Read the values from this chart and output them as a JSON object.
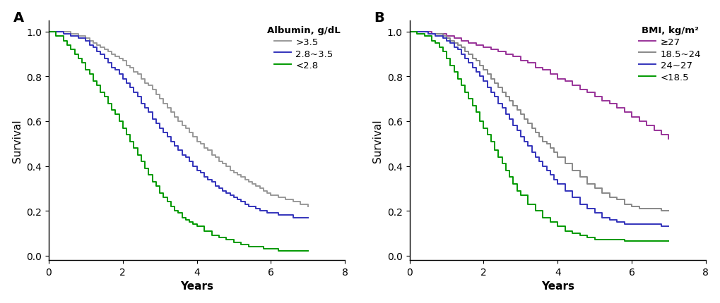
{
  "panel_A": {
    "label": "A",
    "title": "Albumin, g/dL",
    "xlabel": "Years",
    "ylabel": "Survival",
    "xlim": [
      0,
      8
    ],
    "ylim": [
      -0.02,
      1.05
    ],
    "xticks": [
      0,
      2,
      4,
      6,
      8
    ],
    "yticks": [
      0.0,
      0.2,
      0.4,
      0.6,
      0.8,
      1.0
    ],
    "curves": [
      {
        "label": ">3.5",
        "color": "#999999",
        "times": [
          0,
          0.4,
          0.6,
          0.8,
          1.0,
          1.1,
          1.2,
          1.3,
          1.4,
          1.5,
          1.6,
          1.7,
          1.8,
          1.9,
          2.0,
          2.1,
          2.2,
          2.3,
          2.4,
          2.5,
          2.6,
          2.7,
          2.8,
          2.9,
          3.0,
          3.1,
          3.2,
          3.3,
          3.4,
          3.5,
          3.6,
          3.7,
          3.8,
          3.9,
          4.0,
          4.1,
          4.2,
          4.3,
          4.4,
          4.5,
          4.6,
          4.7,
          4.8,
          4.9,
          5.0,
          5.1,
          5.2,
          5.3,
          5.4,
          5.5,
          5.6,
          5.7,
          5.8,
          5.9,
          6.0,
          6.2,
          6.4,
          6.6,
          6.8,
          7.0
        ],
        "survival": [
          1.0,
          1.0,
          0.99,
          0.98,
          0.97,
          0.96,
          0.95,
          0.94,
          0.93,
          0.92,
          0.91,
          0.9,
          0.89,
          0.88,
          0.87,
          0.85,
          0.84,
          0.82,
          0.81,
          0.79,
          0.77,
          0.76,
          0.74,
          0.72,
          0.7,
          0.68,
          0.66,
          0.64,
          0.62,
          0.6,
          0.58,
          0.57,
          0.55,
          0.53,
          0.51,
          0.5,
          0.48,
          0.47,
          0.45,
          0.44,
          0.42,
          0.41,
          0.4,
          0.38,
          0.37,
          0.36,
          0.35,
          0.34,
          0.33,
          0.32,
          0.31,
          0.3,
          0.29,
          0.28,
          0.27,
          0.26,
          0.25,
          0.24,
          0.23,
          0.22
        ]
      },
      {
        "label": "2.8~3.5",
        "color": "#3333bb",
        "times": [
          0,
          0.4,
          0.6,
          0.8,
          1.0,
          1.1,
          1.2,
          1.3,
          1.4,
          1.5,
          1.6,
          1.7,
          1.8,
          1.9,
          2.0,
          2.1,
          2.2,
          2.3,
          2.4,
          2.5,
          2.6,
          2.7,
          2.8,
          2.9,
          3.0,
          3.1,
          3.2,
          3.3,
          3.4,
          3.5,
          3.6,
          3.7,
          3.8,
          3.9,
          4.0,
          4.1,
          4.2,
          4.3,
          4.4,
          4.5,
          4.6,
          4.7,
          4.8,
          4.9,
          5.0,
          5.1,
          5.2,
          5.3,
          5.4,
          5.5,
          5.6,
          5.7,
          5.8,
          5.9,
          6.0,
          6.2,
          6.4,
          6.6,
          6.8,
          7.0
        ],
        "survival": [
          1.0,
          0.99,
          0.98,
          0.97,
          0.96,
          0.94,
          0.93,
          0.91,
          0.9,
          0.88,
          0.86,
          0.84,
          0.83,
          0.81,
          0.79,
          0.77,
          0.75,
          0.73,
          0.71,
          0.68,
          0.66,
          0.64,
          0.61,
          0.59,
          0.57,
          0.55,
          0.53,
          0.51,
          0.49,
          0.47,
          0.45,
          0.44,
          0.42,
          0.4,
          0.38,
          0.37,
          0.35,
          0.34,
          0.33,
          0.31,
          0.3,
          0.29,
          0.28,
          0.27,
          0.26,
          0.25,
          0.24,
          0.23,
          0.22,
          0.22,
          0.21,
          0.2,
          0.2,
          0.19,
          0.19,
          0.18,
          0.18,
          0.17,
          0.17,
          0.17
        ]
      },
      {
        "label": "<2.8",
        "color": "#009900",
        "times": [
          0,
          0.2,
          0.4,
          0.5,
          0.6,
          0.7,
          0.8,
          0.9,
          1.0,
          1.1,
          1.2,
          1.3,
          1.4,
          1.5,
          1.6,
          1.7,
          1.8,
          1.9,
          2.0,
          2.1,
          2.2,
          2.3,
          2.4,
          2.5,
          2.6,
          2.7,
          2.8,
          2.9,
          3.0,
          3.1,
          3.2,
          3.3,
          3.4,
          3.5,
          3.6,
          3.7,
          3.8,
          3.9,
          4.0,
          4.2,
          4.4,
          4.6,
          4.8,
          5.0,
          5.2,
          5.4,
          5.6,
          5.8,
          6.0,
          6.2,
          6.4,
          6.6,
          6.8,
          7.0
        ],
        "survival": [
          1.0,
          0.98,
          0.96,
          0.94,
          0.92,
          0.9,
          0.88,
          0.86,
          0.83,
          0.81,
          0.78,
          0.76,
          0.73,
          0.71,
          0.68,
          0.65,
          0.63,
          0.6,
          0.57,
          0.54,
          0.51,
          0.48,
          0.45,
          0.42,
          0.39,
          0.36,
          0.33,
          0.31,
          0.28,
          0.26,
          0.24,
          0.22,
          0.2,
          0.19,
          0.17,
          0.16,
          0.15,
          0.14,
          0.13,
          0.11,
          0.09,
          0.08,
          0.07,
          0.06,
          0.05,
          0.04,
          0.04,
          0.03,
          0.03,
          0.02,
          0.02,
          0.02,
          0.02,
          0.02
        ]
      }
    ]
  },
  "panel_B": {
    "label": "B",
    "title": "BMI, kg/m²",
    "xlabel": "Years",
    "ylabel": "Survival",
    "xlim": [
      0,
      8
    ],
    "ylim": [
      -0.02,
      1.05
    ],
    "xticks": [
      0,
      2,
      4,
      6,
      8
    ],
    "yticks": [
      0.0,
      0.2,
      0.4,
      0.6,
      0.8,
      1.0
    ],
    "curves": [
      {
        "label": "≥27",
        "color": "#993399",
        "times": [
          0,
          0.4,
          0.6,
          0.8,
          1.0,
          1.2,
          1.4,
          1.6,
          1.8,
          2.0,
          2.2,
          2.4,
          2.6,
          2.8,
          3.0,
          3.2,
          3.4,
          3.6,
          3.8,
          4.0,
          4.2,
          4.4,
          4.6,
          4.8,
          5.0,
          5.2,
          5.4,
          5.6,
          5.8,
          6.0,
          6.2,
          6.4,
          6.6,
          6.8,
          7.0
        ],
        "survival": [
          1.0,
          1.0,
          0.99,
          0.99,
          0.98,
          0.97,
          0.96,
          0.95,
          0.94,
          0.93,
          0.92,
          0.91,
          0.9,
          0.89,
          0.87,
          0.86,
          0.84,
          0.83,
          0.81,
          0.79,
          0.78,
          0.76,
          0.74,
          0.73,
          0.71,
          0.69,
          0.68,
          0.66,
          0.64,
          0.62,
          0.6,
          0.58,
          0.56,
          0.54,
          0.52
        ]
      },
      {
        "label": "18.5~24",
        "color": "#888888",
        "times": [
          0,
          0.3,
          0.5,
          0.7,
          0.9,
          1.0,
          1.1,
          1.2,
          1.3,
          1.4,
          1.5,
          1.6,
          1.7,
          1.8,
          1.9,
          2.0,
          2.1,
          2.2,
          2.3,
          2.4,
          2.5,
          2.6,
          2.7,
          2.8,
          2.9,
          3.0,
          3.1,
          3.2,
          3.3,
          3.4,
          3.5,
          3.6,
          3.7,
          3.8,
          3.9,
          4.0,
          4.2,
          4.4,
          4.6,
          4.8,
          5.0,
          5.2,
          5.4,
          5.6,
          5.8,
          6.0,
          6.2,
          6.4,
          6.6,
          6.8,
          7.0
        ],
        "survival": [
          1.0,
          1.0,
          0.99,
          0.99,
          0.98,
          0.97,
          0.96,
          0.95,
          0.94,
          0.93,
          0.91,
          0.9,
          0.88,
          0.87,
          0.85,
          0.83,
          0.81,
          0.79,
          0.77,
          0.75,
          0.73,
          0.71,
          0.69,
          0.67,
          0.65,
          0.63,
          0.61,
          0.59,
          0.57,
          0.55,
          0.53,
          0.51,
          0.5,
          0.48,
          0.46,
          0.44,
          0.41,
          0.38,
          0.35,
          0.32,
          0.3,
          0.28,
          0.26,
          0.25,
          0.23,
          0.22,
          0.21,
          0.21,
          0.21,
          0.2,
          0.2
        ]
      },
      {
        "label": "24~27",
        "color": "#3333bb",
        "times": [
          0,
          0.3,
          0.5,
          0.7,
          0.9,
          1.0,
          1.1,
          1.2,
          1.3,
          1.4,
          1.5,
          1.6,
          1.7,
          1.8,
          1.9,
          2.0,
          2.1,
          2.2,
          2.3,
          2.4,
          2.5,
          2.6,
          2.7,
          2.8,
          2.9,
          3.0,
          3.1,
          3.2,
          3.3,
          3.4,
          3.5,
          3.6,
          3.7,
          3.8,
          3.9,
          4.0,
          4.2,
          4.4,
          4.6,
          4.8,
          5.0,
          5.2,
          5.4,
          5.6,
          5.8,
          6.0,
          6.2,
          6.4,
          6.6,
          6.8,
          7.0
        ],
        "survival": [
          1.0,
          1.0,
          0.99,
          0.98,
          0.97,
          0.96,
          0.95,
          0.93,
          0.92,
          0.9,
          0.88,
          0.86,
          0.84,
          0.82,
          0.8,
          0.78,
          0.75,
          0.73,
          0.71,
          0.68,
          0.66,
          0.63,
          0.61,
          0.58,
          0.56,
          0.53,
          0.51,
          0.49,
          0.46,
          0.44,
          0.42,
          0.4,
          0.38,
          0.36,
          0.34,
          0.32,
          0.29,
          0.26,
          0.23,
          0.21,
          0.19,
          0.17,
          0.16,
          0.15,
          0.14,
          0.14,
          0.14,
          0.14,
          0.14,
          0.13,
          0.13
        ]
      },
      {
        "label": "<18.5",
        "color": "#009900",
        "times": [
          0,
          0.2,
          0.4,
          0.6,
          0.7,
          0.8,
          0.9,
          1.0,
          1.1,
          1.2,
          1.3,
          1.4,
          1.5,
          1.6,
          1.7,
          1.8,
          1.9,
          2.0,
          2.1,
          2.2,
          2.3,
          2.4,
          2.5,
          2.6,
          2.7,
          2.8,
          2.9,
          3.0,
          3.2,
          3.4,
          3.6,
          3.8,
          4.0,
          4.2,
          4.4,
          4.6,
          4.8,
          5.0,
          5.2,
          5.4,
          5.6,
          5.8,
          6.0,
          6.2,
          6.4,
          6.6,
          6.8,
          7.0
        ],
        "survival": [
          1.0,
          0.99,
          0.98,
          0.96,
          0.95,
          0.93,
          0.91,
          0.88,
          0.85,
          0.82,
          0.79,
          0.76,
          0.73,
          0.7,
          0.67,
          0.64,
          0.6,
          0.57,
          0.54,
          0.51,
          0.47,
          0.44,
          0.41,
          0.38,
          0.35,
          0.32,
          0.29,
          0.27,
          0.23,
          0.2,
          0.17,
          0.15,
          0.13,
          0.11,
          0.1,
          0.09,
          0.08,
          0.07,
          0.07,
          0.07,
          0.07,
          0.065,
          0.065,
          0.065,
          0.065,
          0.065,
          0.065,
          0.065
        ]
      }
    ]
  },
  "figure_bg": "#ffffff",
  "axes_bg": "#ffffff",
  "linewidth": 1.4,
  "legend_fontsize": 9.5,
  "axis_label_fontsize": 11,
  "tick_fontsize": 10,
  "panel_label_fontsize": 14
}
